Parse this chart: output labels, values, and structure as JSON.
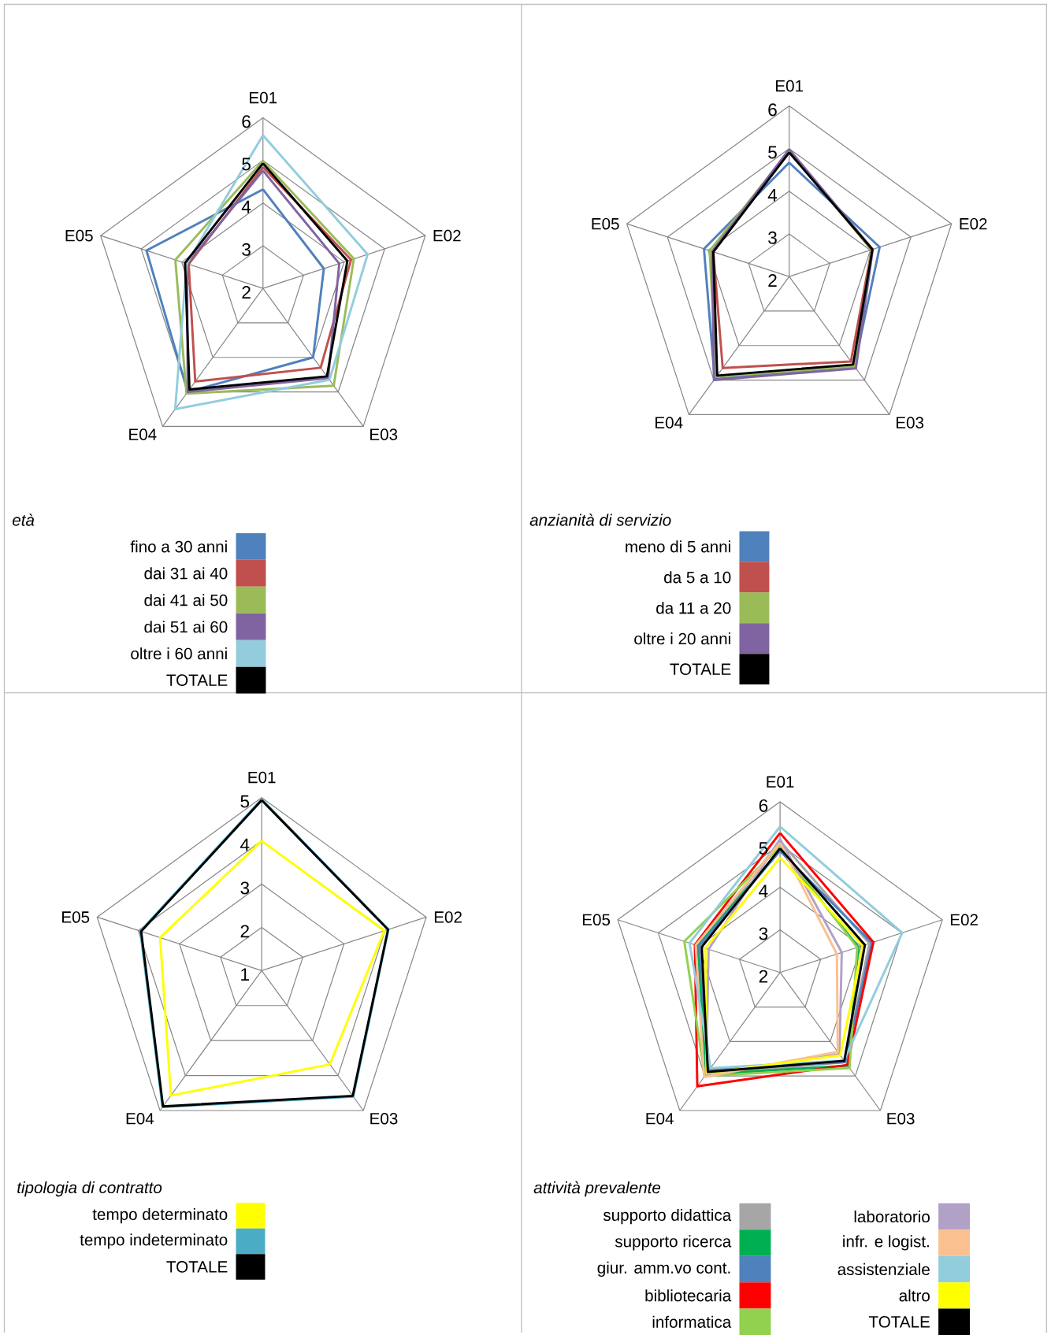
{
  "chart_data": [
    {
      "type": "radar",
      "legend_title": "*età*",
      "categories": [
        "E01",
        "E02",
        "E03",
        "E04",
        "E05"
      ],
      "ylim": [
        2,
        6
      ],
      "yticks": [
        2,
        3,
        4,
        5,
        6
      ],
      "grid": true,
      "legend": "bottom",
      "series": [
        {
          "name": "fino a 30 anni",
          "color": "#4f81bd",
          "values": [
            4.32,
            3.5,
            4.0,
            5.0,
            4.87
          ]
        },
        {
          "name": "dai 31 ai 40",
          "color": "#c0504d",
          "values": [
            4.84,
            4.17,
            4.3,
            4.7,
            3.83
          ]
        },
        {
          "name": "dai 41 ai 50",
          "color": "#9bbb59",
          "values": [
            4.99,
            4.24,
            4.82,
            5.05,
            4.16
          ]
        },
        {
          "name": "dai 51 ai 60",
          "color": "#8064a2",
          "values": [
            4.76,
            3.88,
            4.6,
            5.0,
            3.87
          ]
        },
        {
          "name": "oltre i 60 anni",
          "color": "#93cddd",
          "values": [
            5.59,
            4.58,
            4.65,
            5.5,
            3.88
          ]
        },
        {
          "name": "TOTALE",
          "color": "#000000",
          "values": [
            4.93,
            4.08,
            4.55,
            4.93,
            3.92
          ]
        }
      ]
    },
    {
      "type": "radar",
      "legend_title": "*anzianità di servizio*",
      "categories": [
        "E01",
        "E02",
        "E03",
        "E04",
        "E05"
      ],
      "ylim": [
        2,
        6
      ],
      "yticks": [
        2,
        3,
        4,
        5,
        6
      ],
      "grid": true,
      "legend": "bottom",
      "series": [
        {
          "name": "meno di 5 anni",
          "color": "#4f81bd",
          "values": [
            4.67,
            4.23,
            4.6,
            4.97,
            4.1
          ]
        },
        {
          "name": "da 5 a 10",
          "color": "#c0504d",
          "values": [
            4.95,
            4.03,
            4.46,
            4.65,
            3.87
          ]
        },
        {
          "name": "da 11 a 20",
          "color": "#9bbb59",
          "values": [
            4.95,
            4.03,
            4.6,
            4.9,
            3.96
          ]
        },
        {
          "name": "oltre i 20 anni",
          "color": "#8064a2",
          "values": [
            4.98,
            4.06,
            4.66,
            5.0,
            3.9
          ]
        },
        {
          "name": "TOTALE",
          "color": "#000000",
          "values": [
            4.91,
            4.05,
            4.55,
            4.87,
            3.87
          ]
        }
      ]
    },
    {
      "type": "radar",
      "legend_title": "*tipologia di contratto*",
      "categories": [
        "E01",
        "E02",
        "E03",
        "E04",
        "E05"
      ],
      "ylim": [
        1,
        5
      ],
      "yticks": [
        1,
        2,
        3,
        4,
        5
      ],
      "grid": true,
      "legend": "bottom",
      "series": [
        {
          "name": "tempo determinato",
          "color": "#ffff00",
          "values": [
            4.0,
            3.98,
            3.68,
            4.57,
            3.47
          ]
        },
        {
          "name": "tempo indeterminato",
          "color": "#4bacc6",
          "values": [
            4.96,
            4.08,
            4.6,
            4.9,
            3.95
          ]
        },
        {
          "name": "TOTALE",
          "color": "#000000",
          "values": [
            4.94,
            4.07,
            4.58,
            4.88,
            3.93
          ]
        }
      ]
    },
    {
      "type": "radar",
      "legend_title": "*attività prevalente*",
      "categories": [
        "E01",
        "E02",
        "E03",
        "E04",
        "E05"
      ],
      "ylim": [
        2,
        6
      ],
      "yticks": [
        2,
        3,
        4,
        5,
        6
      ],
      "grid": true,
      "legend": "bottom",
      "series": [
        {
          "name": "supporto didattica",
          "color": "#a6a6a6",
          "values": [
            5.08,
            4.2,
            4.6,
            4.95,
            4.0
          ]
        },
        {
          "name": "supporto ricerca",
          "color": "#00b050",
          "values": [
            4.88,
            3.93,
            4.7,
            4.95,
            4.03
          ]
        },
        {
          "name": "giur. amm.vo cont.",
          "color": "#4f81bd",
          "values": [
            4.85,
            4.26,
            4.6,
            4.82,
            4.0
          ]
        },
        {
          "name": "bibliotecaria",
          "color": "#ff0000",
          "values": [
            5.27,
            4.3,
            4.68,
            5.3,
            4.1
          ]
        },
        {
          "name": "informatica",
          "color": "#92d050",
          "values": [
            4.95,
            3.9,
            4.77,
            5.0,
            4.36
          ]
        },
        {
          "name": "laboratorio",
          "color": "#b2a1c7",
          "values": [
            5.13,
            3.52,
            4.37,
            4.95,
            3.76
          ]
        },
        {
          "name": "infr. e logist.",
          "color": "#fac090",
          "values": [
            5.04,
            3.4,
            4.3,
            5.03,
            4.08
          ]
        },
        {
          "name": "assistenziale",
          "color": "#92cddc",
          "values": [
            5.42,
            5.01,
            4.55,
            4.77,
            4.23
          ]
        },
        {
          "name": "altro",
          "color": "#ffff00",
          "values": [
            4.69,
            4.04,
            4.4,
            4.92,
            3.84
          ]
        },
        {
          "name": "TOTALE",
          "color": "#000000",
          "values": [
            4.91,
            4.09,
            4.56,
            4.88,
            3.93
          ]
        }
      ]
    }
  ]
}
